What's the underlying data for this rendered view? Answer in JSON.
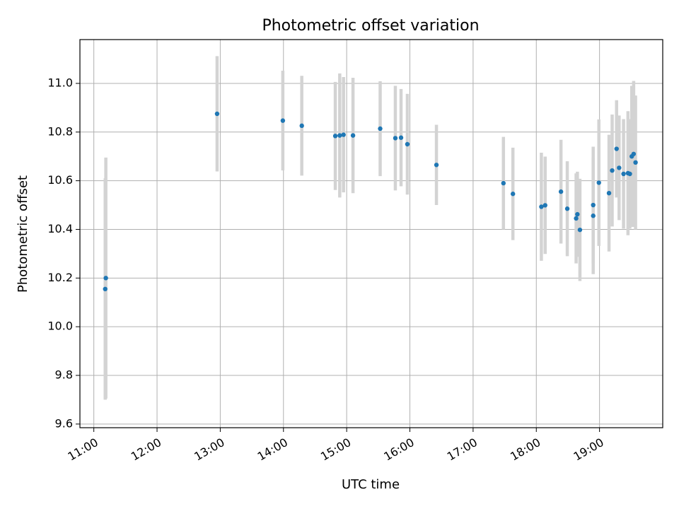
{
  "chart_data": {
    "type": "scatter",
    "title": "Photometric offset variation",
    "xlabel": "UTC time",
    "ylabel": "Photometric offset",
    "x_unit": "hour of day (UTC)",
    "xlim": [
      10.78,
      20.0
    ],
    "ylim": [
      9.585,
      11.18
    ],
    "x_ticks": [
      {
        "value": 11,
        "label": "11:00"
      },
      {
        "value": 12,
        "label": "12:00"
      },
      {
        "value": 13,
        "label": "13:00"
      },
      {
        "value": 14,
        "label": "14:00"
      },
      {
        "value": 15,
        "label": "15:00"
      },
      {
        "value": 16,
        "label": "16:00"
      },
      {
        "value": 17,
        "label": "17:00"
      },
      {
        "value": 18,
        "label": "18:00"
      },
      {
        "value": 19,
        "label": "19:00"
      }
    ],
    "y_ticks": [
      {
        "value": 9.6,
        "label": "9.6"
      },
      {
        "value": 9.8,
        "label": "9.8"
      },
      {
        "value": 10.0,
        "label": "10.0"
      },
      {
        "value": 10.2,
        "label": "10.2"
      },
      {
        "value": 10.4,
        "label": "10.4"
      },
      {
        "value": 10.6,
        "label": "10.6"
      },
      {
        "value": 10.8,
        "label": "10.8"
      },
      {
        "value": 11.0,
        "label": "11.0"
      }
    ],
    "grid": true,
    "marker_color": "#1f77b4",
    "errorbar_color": "#d3d3d3",
    "points": [
      {
        "x": 11.19,
        "y": 10.2,
        "err": 0.495
      },
      {
        "x": 11.18,
        "y": 10.155,
        "err": 0.455
      },
      {
        "x": 12.95,
        "y": 10.875,
        "err": 0.237
      },
      {
        "x": 13.99,
        "y": 10.847,
        "err": 0.205
      },
      {
        "x": 14.29,
        "y": 10.826,
        "err": 0.205
      },
      {
        "x": 14.82,
        "y": 10.784,
        "err": 0.222
      },
      {
        "x": 14.89,
        "y": 10.786,
        "err": 0.255
      },
      {
        "x": 14.95,
        "y": 10.789,
        "err": 0.237
      },
      {
        "x": 15.1,
        "y": 10.786,
        "err": 0.237
      },
      {
        "x": 15.53,
        "y": 10.814,
        "err": 0.195
      },
      {
        "x": 15.77,
        "y": 10.775,
        "err": 0.215
      },
      {
        "x": 15.86,
        "y": 10.777,
        "err": 0.2
      },
      {
        "x": 15.96,
        "y": 10.75,
        "err": 0.207
      },
      {
        "x": 16.42,
        "y": 10.665,
        "err": 0.165
      },
      {
        "x": 17.48,
        "y": 10.59,
        "err": 0.19
      },
      {
        "x": 17.63,
        "y": 10.546,
        "err": 0.19
      },
      {
        "x": 18.08,
        "y": 10.493,
        "err": 0.222
      },
      {
        "x": 18.14,
        "y": 10.499,
        "err": 0.2
      },
      {
        "x": 18.39,
        "y": 10.555,
        "err": 0.213
      },
      {
        "x": 18.49,
        "y": 10.485,
        "err": 0.195
      },
      {
        "x": 18.63,
        "y": 10.445,
        "err": 0.185
      },
      {
        "x": 18.65,
        "y": 10.462,
        "err": 0.175
      },
      {
        "x": 18.69,
        "y": 10.398,
        "err": 0.21
      },
      {
        "x": 18.9,
        "y": 10.5,
        "err": 0.24
      },
      {
        "x": 18.9,
        "y": 10.456,
        "err": 0.24
      },
      {
        "x": 18.99,
        "y": 10.592,
        "err": 0.26
      },
      {
        "x": 19.15,
        "y": 10.549,
        "err": 0.24
      },
      {
        "x": 19.2,
        "y": 10.642,
        "err": 0.23
      },
      {
        "x": 19.27,
        "y": 10.731,
        "err": 0.2
      },
      {
        "x": 19.31,
        "y": 10.653,
        "err": 0.215
      },
      {
        "x": 19.38,
        "y": 10.628,
        "err": 0.225
      },
      {
        "x": 19.45,
        "y": 10.631,
        "err": 0.255
      },
      {
        "x": 19.48,
        "y": 10.628,
        "err": 0.225
      },
      {
        "x": 19.51,
        "y": 10.7,
        "err": 0.29
      },
      {
        "x": 19.54,
        "y": 10.71,
        "err": 0.3
      },
      {
        "x": 19.57,
        "y": 10.675,
        "err": 0.275
      }
    ]
  }
}
